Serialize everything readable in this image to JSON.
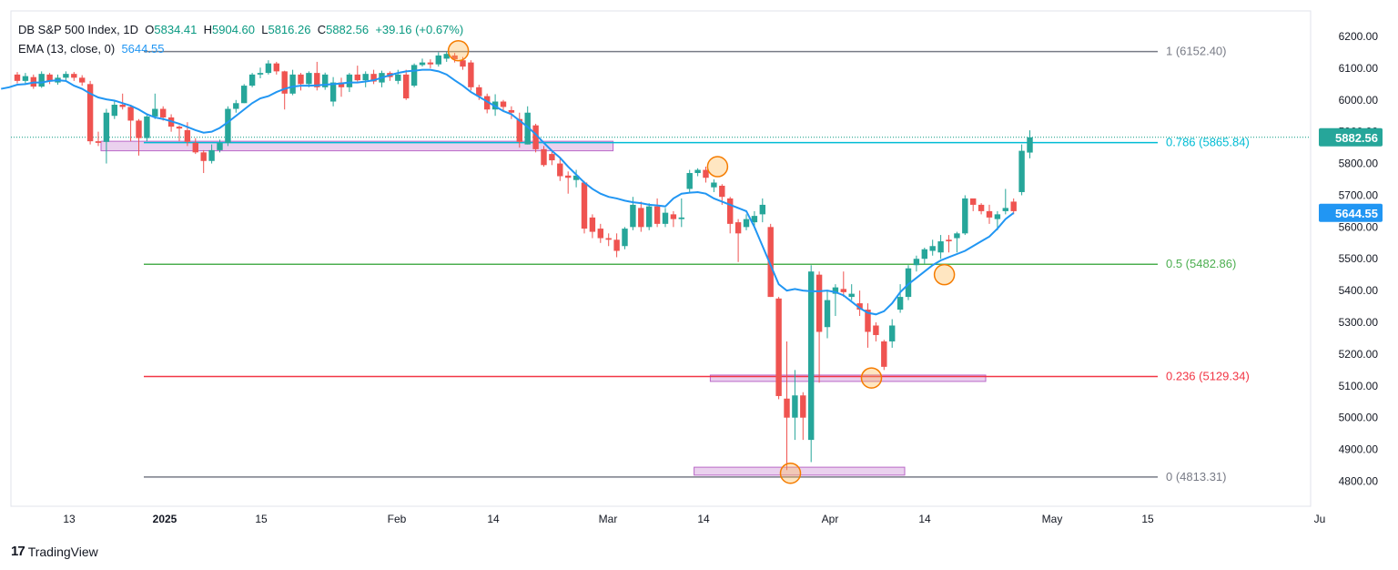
{
  "legend": {
    "symbol": "DB S&P 500 Index, 1D",
    "open_label": "O",
    "open": "5834.41",
    "high_label": "H",
    "high": "5904.60",
    "low_label": "L",
    "low": "5816.26",
    "close_label": "C",
    "close": "5882.56",
    "change": "+39.16 (+0.67%)",
    "ema_label": "EMA (13, close, 0)",
    "ema_value": "5644.55"
  },
  "brand": {
    "name": "TradingView",
    "logo_icon": "tradingview-logo-icon"
  },
  "colors": {
    "up": "#26a69a",
    "down": "#ef5350",
    "ema": "#2196f3",
    "fib_0786": "#00bcd4",
    "fib_05": "#4caf50",
    "fib_0236": "#f23645",
    "fib_grey": "#787b86",
    "zone": "#e1bee7",
    "marker": "#ffb74d"
  },
  "chart_data": {
    "type": "candlestick",
    "ylim": [
      4770,
      6230
    ],
    "y_ticks": [
      "6200.00",
      "6100.00",
      "6000.00",
      "5900.00",
      "5800.00",
      "5700.00",
      "5600.00",
      "5500.00",
      "5400.00",
      "5300.00",
      "5200.00",
      "5100.00",
      "5000.00",
      "4900.00",
      "4800.00"
    ],
    "x_ticks": [
      "13",
      "2025",
      "15",
      "Feb",
      "14",
      "Mar",
      "14",
      "Apr",
      "14",
      "May",
      "15",
      "Ju"
    ],
    "price_labels": {
      "last": "5882.56",
      "ema": "5644.55"
    },
    "fib_levels": [
      {
        "ratio": "1",
        "value": 6152.4,
        "label": "1 (6152.40)"
      },
      {
        "ratio": "0.786",
        "value": 5865.84,
        "label": "0.786 (5865.84)"
      },
      {
        "ratio": "0.5",
        "value": 5482.86,
        "label": "0.5 (5482.86)"
      },
      {
        "ratio": "0.236",
        "value": 5129.34,
        "label": "0.236 (5129.34)"
      },
      {
        "ratio": "0",
        "value": 4813.31,
        "label": "0 (4813.31)"
      }
    ],
    "candles": [
      [
        6080,
        6060,
        6088,
        6052
      ],
      [
        6060,
        6075,
        6085,
        6050
      ],
      [
        6072,
        6042,
        6080,
        6035
      ],
      [
        6042,
        6082,
        6090,
        6038
      ],
      [
        6080,
        6058,
        6085,
        6050
      ],
      [
        6055,
        6070,
        6080,
        6048
      ],
      [
        6070,
        6082,
        6090,
        6062
      ],
      [
        6082,
        6070,
        6088,
        6060
      ],
      [
        6070,
        6055,
        6078,
        6045
      ],
      [
        6050,
        5870,
        6060,
        5860
      ],
      [
        5870,
        5865,
        5900,
        5855
      ],
      [
        5868,
        5960,
        5972,
        5800
      ],
      [
        5950,
        5985,
        6000,
        5940
      ],
      [
        5985,
        5978,
        6020,
        5970
      ],
      [
        5978,
        5935,
        5985,
        5870
      ],
      [
        5935,
        5880,
        5940,
        5825
      ],
      [
        5880,
        5948,
        5952,
        5870
      ],
      [
        5948,
        5972,
        6020,
        5940
      ],
      [
        5972,
        5945,
        5980,
        5935
      ],
      [
        5945,
        5916,
        5955,
        5900
      ],
      [
        5916,
        5910,
        5920,
        5870
      ],
      [
        5905,
        5868,
        5930,
        5855
      ],
      [
        5865,
        5835,
        5880,
        5830
      ],
      [
        5835,
        5808,
        5842,
        5770
      ],
      [
        5808,
        5842,
        5860,
        5800
      ],
      [
        5842,
        5865,
        5875,
        5835
      ],
      [
        5865,
        5972,
        5980,
        5855
      ],
      [
        5972,
        5990,
        6000,
        5960
      ],
      [
        5990,
        6045,
        6050,
        5990
      ],
      [
        6045,
        6080,
        6085,
        6040
      ],
      [
        6080,
        6085,
        6102,
        6068
      ],
      [
        6085,
        6115,
        6125,
        6080
      ],
      [
        6115,
        6090,
        6120,
        6080
      ],
      [
        6090,
        6020,
        6092,
        5970
      ],
      [
        6020,
        6080,
        6095,
        6015
      ],
      [
        6080,
        6050,
        6085,
        6030
      ],
      [
        6050,
        6085,
        6090,
        6040
      ],
      [
        6085,
        6040,
        6120,
        6030
      ],
      [
        6040,
        6080,
        6086,
        6032
      ],
      [
        5995,
        6055,
        6072,
        5980
      ],
      [
        6055,
        6040,
        6070,
        6010
      ],
      [
        6040,
        6080,
        6085,
        6025
      ],
      [
        6080,
        6062,
        6108,
        6058
      ],
      [
        6062,
        6082,
        6090,
        6040
      ],
      [
        6082,
        6058,
        6095,
        6050
      ],
      [
        6055,
        6085,
        6092,
        6040
      ],
      [
        6085,
        6072,
        6090,
        6060
      ],
      [
        6060,
        6080,
        6095,
        6050
      ],
      [
        6080,
        6005,
        6095,
        6000
      ],
      [
        6045,
        6110,
        6115,
        6040
      ],
      [
        6110,
        6118,
        6130,
        6105
      ],
      [
        6118,
        6112,
        6128,
        6100
      ],
      [
        6112,
        6140,
        6150,
        6105
      ],
      [
        6130,
        6145,
        6152,
        6120
      ],
      [
        6140,
        6128,
        6148,
        6118
      ],
      [
        6125,
        6105,
        6135,
        6095
      ],
      [
        6118,
        6040,
        6125,
        6030
      ],
      [
        6040,
        6012,
        6048,
        6000
      ],
      [
        6012,
        5970,
        6020,
        5958
      ],
      [
        5970,
        5995,
        6018,
        5950
      ],
      [
        5995,
        5978,
        6000,
        5965
      ],
      [
        5968,
        5960,
        5980,
        5940
      ],
      [
        5940,
        5868,
        5960,
        5850
      ],
      [
        5860,
        5960,
        5980,
        5860
      ],
      [
        5920,
        5845,
        5925,
        5835
      ],
      [
        5845,
        5795,
        5855,
        5790
      ],
      [
        5830,
        5810,
        5840,
        5795
      ],
      [
        5800,
        5760,
        5815,
        5745
      ],
      [
        5762,
        5755,
        5775,
        5705
      ],
      [
        5748,
        5762,
        5780,
        5725
      ],
      [
        5740,
        5595,
        5745,
        5580
      ],
      [
        5630,
        5585,
        5640,
        5565
      ],
      [
        5595,
        5565,
        5610,
        5550
      ],
      [
        5565,
        5560,
        5580,
        5540
      ],
      [
        5560,
        5525,
        5580,
        5505
      ],
      [
        5540,
        5595,
        5600,
        5530
      ],
      [
        5600,
        5670,
        5695,
        5590
      ],
      [
        5660,
        5600,
        5680,
        5585
      ],
      [
        5600,
        5665,
        5675,
        5590
      ],
      [
        5665,
        5610,
        5690,
        5600
      ],
      [
        5610,
        5645,
        5660,
        5600
      ],
      [
        5640,
        5625,
        5650,
        5600
      ],
      [
        5625,
        5630,
        5690,
        5600
      ],
      [
        5720,
        5770,
        5780,
        5710
      ],
      [
        5770,
        5780,
        5785,
        5760
      ],
      [
        5780,
        5755,
        5790,
        5740
      ],
      [
        5725,
        5740,
        5750,
        5710
      ],
      [
        5730,
        5695,
        5735,
        5670
      ],
      [
        5690,
        5610,
        5695,
        5580
      ],
      [
        5615,
        5580,
        5625,
        5490
      ],
      [
        5600,
        5625,
        5640,
        5590
      ],
      [
        5615,
        5635,
        5650,
        5600
      ],
      [
        5640,
        5670,
        5690,
        5615
      ],
      [
        5600,
        5380,
        5610,
        5380
      ],
      [
        5375,
        5068,
        5380,
        5058
      ],
      [
        5060,
        5000,
        5240,
        4835
      ],
      [
        5000,
        5070,
        5150,
        4930
      ],
      [
        5070,
        5000,
        5080,
        4930
      ],
      [
        4930,
        5460,
        5480,
        4860
      ],
      [
        5450,
        5270,
        5460,
        5110
      ],
      [
        5285,
        5370,
        5400,
        5250
      ],
      [
        5390,
        5410,
        5420,
        5320
      ],
      [
        5405,
        5395,
        5460,
        5380
      ],
      [
        5380,
        5390,
        5420,
        5370
      ],
      [
        5360,
        5340,
        5400,
        5320
      ],
      [
        5340,
        5270,
        5360,
        5220
      ],
      [
        5290,
        5260,
        5300,
        5240
      ],
      [
        5240,
        5160,
        5245,
        5150
      ],
      [
        5240,
        5290,
        5310,
        5220
      ],
      [
        5340,
        5380,
        5420,
        5330
      ],
      [
        5380,
        5470,
        5480,
        5370
      ],
      [
        5480,
        5500,
        5510,
        5460
      ],
      [
        5500,
        5530,
        5535,
        5485
      ],
      [
        5525,
        5540,
        5560,
        5510
      ],
      [
        5520,
        5555,
        5575,
        5500
      ],
      [
        5560,
        5555,
        5575,
        5520
      ],
      [
        5565,
        5580,
        5585,
        5520
      ],
      [
        5580,
        5690,
        5700,
        5575
      ],
      [
        5690,
        5670,
        5685,
        5650
      ],
      [
        5670,
        5650,
        5675,
        5640
      ],
      [
        5650,
        5630,
        5670,
        5610
      ],
      [
        5625,
        5640,
        5650,
        5590
      ],
      [
        5650,
        5660,
        5720,
        5640
      ],
      [
        5680,
        5650,
        5690,
        5640
      ],
      [
        5710,
        5840,
        5860,
        5700
      ],
      [
        5834.41,
        5882.56,
        5904.6,
        5816.26
      ]
    ],
    "ema13": [
      6035,
      6040,
      6048,
      6050,
      6055,
      6055,
      6060,
      6062,
      6060,
      6045,
      6035,
      6020,
      6008,
      6002,
      5998,
      5990,
      5982,
      5970,
      5955,
      5945,
      5940,
      5933,
      5925,
      5915,
      5905,
      5897,
      5900,
      5912,
      5930,
      5950,
      5970,
      5990,
      6005,
      6012,
      6025,
      6035,
      6042,
      6045,
      6045,
      6046,
      6048,
      6050,
      6052,
      6055,
      6055,
      6058,
      6062,
      6070,
      6078,
      6085,
      6090,
      6092,
      6095,
      6095,
      6090,
      6080,
      6062,
      6045,
      6025,
      6010,
      5995,
      5980,
      5965,
      5955,
      5935,
      5915,
      5892,
      5865,
      5840,
      5818,
      5790,
      5765,
      5740,
      5720,
      5705,
      5695,
      5690,
      5683,
      5678,
      5675,
      5670,
      5668,
      5665,
      5690,
      5705,
      5708,
      5710,
      5705,
      5690,
      5680,
      5670,
      5660,
      5650,
      5600,
      5540,
      5480,
      5420,
      5400,
      5405,
      5400,
      5398,
      5398,
      5400,
      5395,
      5385,
      5365,
      5345,
      5330,
      5325,
      5335,
      5360,
      5395,
      5420,
      5440,
      5460,
      5480,
      5495,
      5505,
      5515,
      5525,
      5540,
      5555,
      5570,
      5595,
      5625,
      5644.55
    ],
    "zones": [
      {
        "name": "zone-top",
        "from": 0,
        "to": 74,
        "top": 5870,
        "bottom": 5840
      },
      {
        "name": "zone-mid",
        "from": 86,
        "to": 120,
        "top": 5134,
        "bottom": 5114
      },
      {
        "name": "zone-bottom",
        "from": 84,
        "to": 110,
        "top": 4844,
        "bottom": 4819
      }
    ],
    "markers": [
      {
        "index": 54,
        "value": 6155
      },
      {
        "index": 86,
        "value": 5790
      },
      {
        "index": 95,
        "value": 4825
      },
      {
        "index": 105,
        "value": 5125
      },
      {
        "index": 114,
        "value": 5450
      }
    ]
  }
}
